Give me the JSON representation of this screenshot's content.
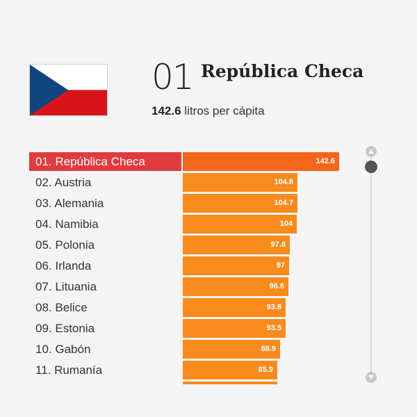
{
  "header": {
    "rank": "01",
    "country": "República Checa",
    "value": "142.6",
    "unit": "litros per cápita",
    "flag_icon": "czech-flag-icon"
  },
  "colors": {
    "highlight_label_bg": "#e03b3f",
    "highlight_bar": "#f4661c",
    "bar": "#f78b1d",
    "scroll_thumb": "#555555",
    "scroll_button": "#c8c8c8"
  },
  "chart_data": {
    "type": "bar",
    "orientation": "horizontal",
    "categories": [
      "01. República Checa",
      "02. Austria",
      "03. Alemania",
      "04. Namibia",
      "05. Polonia",
      "06. Irlanda",
      "07. Lituania",
      "08. Belice",
      "09. Estonia",
      "10. Gabón",
      "11. Rumanía"
    ],
    "values": [
      142.6,
      104.8,
      104.7,
      104,
      97.8,
      97,
      96.6,
      93.8,
      93.5,
      88.9,
      85.9
    ],
    "value_labels": [
      "142.6",
      "104.8",
      "104.7",
      "104",
      "97.8",
      "97",
      "96.6",
      "93.8",
      "93.5",
      "88.9",
      "85.9"
    ],
    "highlighted_index": 0,
    "title": "",
    "xlabel": "",
    "ylabel": "",
    "xlim": [
      0,
      142.6
    ],
    "grid": false
  },
  "scrollbar": {
    "up_icon": "arrow-up-icon",
    "down_icon": "arrow-down-icon"
  }
}
